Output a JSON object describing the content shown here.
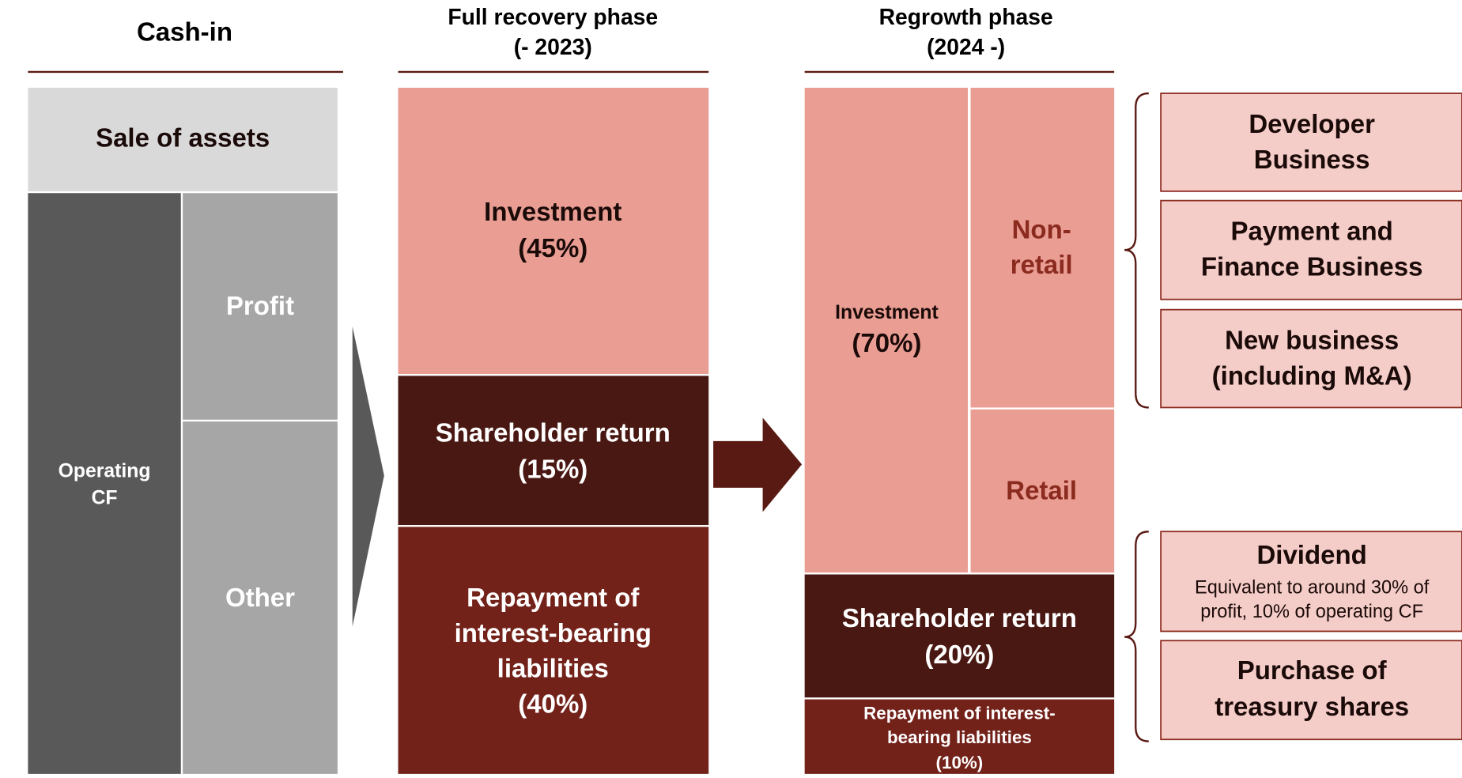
{
  "cash_in": {
    "title": "Cash-in",
    "sale_of_assets": "Sale of assets",
    "operating_cf": [
      "Operating",
      "CF"
    ],
    "profit": "Profit",
    "other": "Other"
  },
  "full_recovery": {
    "title": [
      "Full recovery phase",
      "(- 2023)"
    ],
    "investment": [
      "Investment",
      "(45%)"
    ],
    "shareholder_return": [
      "Shareholder return",
      "(15%)"
    ],
    "repayment": [
      "Repayment of",
      "interest-bearing",
      "liabilities",
      "(40%)"
    ]
  },
  "regrowth": {
    "title": [
      "Regrowth phase",
      "(2024 -)"
    ],
    "investment": [
      "Investment",
      "(70%)"
    ],
    "non_retail": [
      "Non-",
      "retail"
    ],
    "retail": "Retail",
    "shareholder_return": [
      "Shareholder return",
      "(20%)"
    ],
    "repayment": [
      "Repayment of interest-",
      "bearing liabilities",
      "(10%)"
    ]
  },
  "investment_targets": [
    [
      "Developer",
      "Business"
    ],
    [
      "Payment and",
      "Finance Business"
    ],
    [
      "New business",
      "(including M&A)"
    ]
  ],
  "return_targets": {
    "dividend": {
      "title": "Dividend",
      "note": [
        "Equivalent to around 30% of",
        "profit, 10% of operating CF"
      ]
    },
    "purchase": [
      "Purchase of",
      "treasury shares"
    ]
  }
}
